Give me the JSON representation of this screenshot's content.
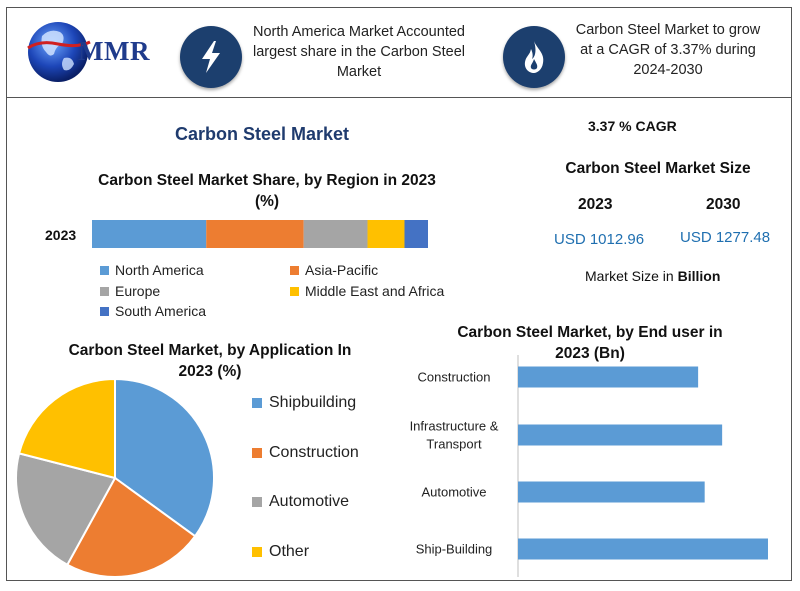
{
  "header": {
    "logo_text": "MMR",
    "info_left": "North America Market Accounted largest share in the Carbon Steel Market",
    "info_right": "Carbon Steel Market to grow at a CAGR of 3.37% during 2024-2030",
    "icon_left": "lightning-icon",
    "icon_right": "flame-icon"
  },
  "main_title": "Carbon Steel Market",
  "cagr_label": "3.37 % CAGR",
  "market_size": {
    "title": "Carbon Steel Market Size",
    "year1": "2023",
    "year2": "2030",
    "value1": "USD 1012.96",
    "value2": "USD 1277.48",
    "note_prefix": "Market Size in ",
    "note_bold": "Billion"
  },
  "colors": {
    "blue": "#5b9bd5",
    "orange": "#ed7d31",
    "gray": "#a5a5a5",
    "yellow": "#ffc000",
    "dark_blue": "#4472c4",
    "navy": "#1c3f6e"
  },
  "chart_data": [
    {
      "type": "bar",
      "orientation": "horizontal-stacked",
      "title": "Carbon Steel Market Share, by Region in 2023 (%)",
      "categories": [
        "2023"
      ],
      "series": [
        {
          "name": "North America",
          "values": [
            34
          ]
        },
        {
          "name": "Asia-Pacific",
          "values": [
            29
          ]
        },
        {
          "name": "Europe",
          "values": [
            19
          ]
        },
        {
          "name": "Middle East and Africa",
          "values": [
            11
          ]
        },
        {
          "name": "South America",
          "values": [
            7
          ]
        }
      ],
      "legend": "bottom"
    },
    {
      "type": "pie",
      "title": "Carbon Steel Market, by Application In 2023 (%)",
      "labels": [
        "Shipbuilding",
        "Construction",
        "Automotive",
        "Other"
      ],
      "values": [
        35,
        23,
        21,
        21
      ],
      "legend": "right"
    },
    {
      "type": "bar",
      "orientation": "horizontal",
      "title": "Carbon Steel Market, by End user in 2023 (Bn)",
      "categories": [
        "Construction",
        "Infrastructure & Transport",
        "Automotive",
        "Ship-Building"
      ],
      "category_lines": [
        [
          "Construction"
        ],
        [
          "Infrastructure &",
          "Transport"
        ],
        [
          "Automotive"
        ],
        [
          "Ship-Building"
        ]
      ],
      "values": [
        165,
        187,
        171,
        229
      ],
      "xlim": [
        0,
        240
      ]
    }
  ]
}
